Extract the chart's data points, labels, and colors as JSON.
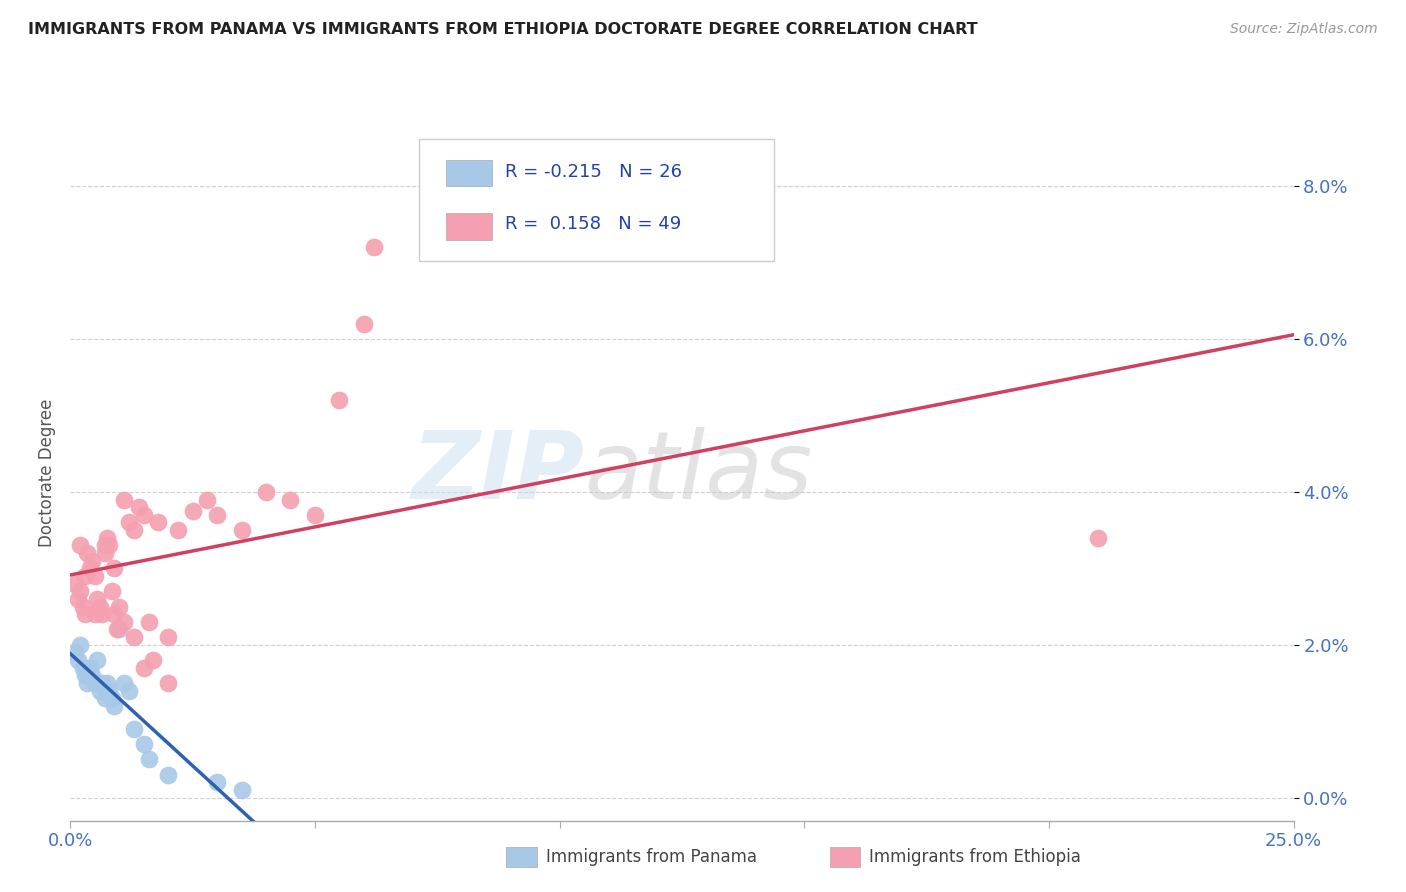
{
  "title": "IMMIGRANTS FROM PANAMA VS IMMIGRANTS FROM ETHIOPIA DOCTORATE DEGREE CORRELATION CHART",
  "source": "Source: ZipAtlas.com",
  "ylabel": "Doctorate Degree",
  "ytick_vals": [
    0.0,
    2.0,
    4.0,
    6.0,
    8.0
  ],
  "xlim": [
    0.0,
    25.0
  ],
  "ylim": [
    -0.3,
    8.8
  ],
  "legend_r_panama": "-0.215",
  "legend_n_panama": "26",
  "legend_r_ethiopia": "0.158",
  "legend_n_ethiopia": "49",
  "panama_color": "#a8c8e8",
  "ethiopia_color": "#f4a0b0",
  "trendline_panama_color": "#3060b0",
  "trendline_ethiopia_color": "#d04060",
  "watermark_zip": "ZIP",
  "watermark_atlas": "atlas",
  "panama_x": [
    0.1,
    0.15,
    0.2,
    0.25,
    0.3,
    0.35,
    0.4,
    0.45,
    0.5,
    0.55,
    0.6,
    0.65,
    0.7,
    0.75,
    0.8,
    0.85,
    0.9,
    1.0,
    1.1,
    1.2,
    1.3,
    1.5,
    1.6,
    2.0,
    3.0,
    3.5
  ],
  "panama_y": [
    1.9,
    1.8,
    2.0,
    1.7,
    1.6,
    1.5,
    1.7,
    1.6,
    1.5,
    1.8,
    1.4,
    1.5,
    1.3,
    1.5,
    1.4,
    1.3,
    1.2,
    2.2,
    1.5,
    1.4,
    0.9,
    0.7,
    0.5,
    0.3,
    0.2,
    0.1
  ],
  "ethiopia_x": [
    0.1,
    0.15,
    0.2,
    0.25,
    0.3,
    0.35,
    0.4,
    0.45,
    0.5,
    0.55,
    0.6,
    0.65,
    0.7,
    0.75,
    0.8,
    0.85,
    0.9,
    0.95,
    1.0,
    1.1,
    1.2,
    1.3,
    1.4,
    1.5,
    1.6,
    1.8,
    2.0,
    2.2,
    2.5,
    2.8,
    3.0,
    3.5,
    4.0,
    4.5,
    5.0,
    5.5,
    6.0,
    6.2,
    0.2,
    0.3,
    0.5,
    0.7,
    0.9,
    1.1,
    1.3,
    1.5,
    1.7,
    2.0,
    21.0
  ],
  "ethiopia_y": [
    2.8,
    2.6,
    2.7,
    2.5,
    2.4,
    3.2,
    3.0,
    3.1,
    2.9,
    2.6,
    2.5,
    2.4,
    3.3,
    3.4,
    3.3,
    2.7,
    3.0,
    2.2,
    2.5,
    3.9,
    3.6,
    3.5,
    3.8,
    3.7,
    2.3,
    3.6,
    2.1,
    3.5,
    3.75,
    3.9,
    3.7,
    3.5,
    4.0,
    3.9,
    3.7,
    5.2,
    6.2,
    7.2,
    3.3,
    2.9,
    2.4,
    3.2,
    2.4,
    2.3,
    2.1,
    1.7,
    1.8,
    1.5,
    3.4
  ]
}
